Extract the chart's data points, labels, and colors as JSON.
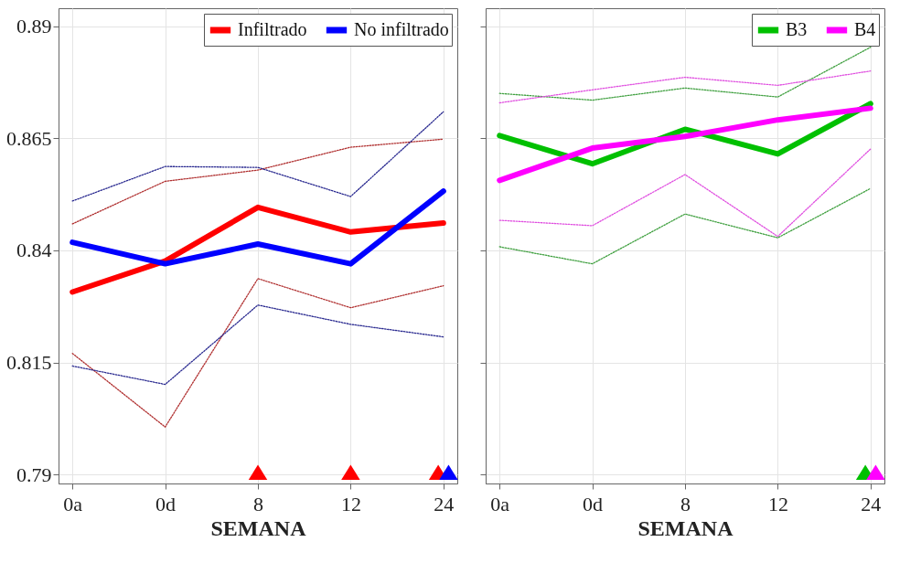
{
  "chart_data": [
    {
      "type": "line",
      "categories": [
        "0a",
        "0d",
        "8",
        "12",
        "24"
      ],
      "xlabel": "SEMANA",
      "ylim": [
        0.788,
        0.894
      ],
      "yticks": [
        0.79,
        0.815,
        0.84,
        0.865,
        0.89
      ],
      "grid": true,
      "legend": "top right",
      "series": [
        {
          "name": "Infiltrado",
          "color": "#ff0000",
          "line_style": "solid",
          "values": [
            0.8307,
            0.8376,
            0.8496,
            0.8441,
            0.8461
          ]
        },
        {
          "name": "No infiltrado",
          "color": "#0000ff",
          "line_style": "solid",
          "values": [
            0.8418,
            0.837,
            0.8414,
            0.837,
            0.8532
          ]
        },
        {
          "color": "#b03030",
          "line_style": "dotted",
          "values": [
            0.8459,
            0.8554,
            0.8579,
            0.863,
            0.8648
          ]
        },
        {
          "color": "#2a2a90",
          "line_style": "dotted",
          "values": [
            0.851,
            0.8587,
            0.8585,
            0.852,
            0.8709
          ]
        },
        {
          "color": "#b03030",
          "line_style": "dotted",
          "values": [
            0.817,
            0.8006,
            0.8337,
            0.8272,
            0.8321
          ]
        },
        {
          "color": "#2a2a90",
          "line_style": "dotted",
          "values": [
            0.8142,
            0.8101,
            0.8278,
            0.8235,
            0.8207
          ]
        },
        {
          "type": "scatter",
          "marker": "triangle",
          "color": "#ff0000",
          "x": [
            "8",
            "12",
            "24"
          ],
          "values": [
            0.7905,
            0.7905,
            0.7905
          ]
        },
        {
          "type": "scatter",
          "marker": "triangle",
          "color": "#0000ff",
          "x": [
            "24"
          ],
          "values": [
            0.7905
          ]
        }
      ]
    },
    {
      "type": "line",
      "categories": [
        "0a",
        "0d",
        "8",
        "12",
        "24"
      ],
      "xlabel": "SEMANA",
      "ylim": [
        0.788,
        0.894
      ],
      "yticks": [
        0.79,
        0.815,
        0.84,
        0.865,
        0.89
      ],
      "grid": true,
      "legend": "top right",
      "tick_labels": "x",
      "series": [
        {
          "name": "B3",
          "color": "#00c000",
          "line_style": "solid",
          "values": [
            0.8656,
            0.8593,
            0.867,
            0.8615,
            0.8727
          ]
        },
        {
          "name": "B4",
          "color": "#ff00ff",
          "line_style": "solid",
          "values": [
            0.8556,
            0.8628,
            0.8654,
            0.8691,
            0.8717
          ]
        },
        {
          "color": "#40a040",
          "line_style": "dotted",
          "values": [
            0.875,
            0.8735,
            0.8762,
            0.8742,
            0.8853
          ]
        },
        {
          "color": "#e050e0",
          "line_style": "dotted",
          "values": [
            0.8729,
            0.8758,
            0.8786,
            0.8768,
            0.88
          ]
        },
        {
          "color": "#e050e0",
          "line_style": "dotted",
          "values": [
            0.8467,
            0.8455,
            0.8569,
            0.8431,
            0.8626
          ]
        },
        {
          "color": "#40a040",
          "line_style": "dotted",
          "values": [
            0.8408,
            0.837,
            0.8481,
            0.8428,
            0.8538
          ]
        },
        {
          "type": "scatter",
          "marker": "triangle",
          "color": "#00c000",
          "x": [
            "24"
          ],
          "values": [
            0.7905
          ]
        },
        {
          "type": "scatter",
          "marker": "triangle",
          "color": "#ff00ff",
          "x": [
            "24"
          ],
          "values": [
            0.7905
          ]
        }
      ]
    }
  ]
}
